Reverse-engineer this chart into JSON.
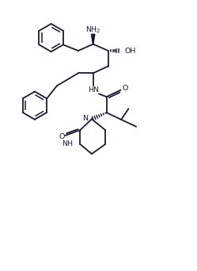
{
  "bg_color": "#ffffff",
  "line_color": "#1a1a2e",
  "line_width": 1.3,
  "fig_width": 2.49,
  "fig_height": 3.42,
  "dpi": 100,
  "font_size": 6.8,
  "xlim": [
    0,
    10
  ],
  "ylim": [
    0,
    14
  ]
}
